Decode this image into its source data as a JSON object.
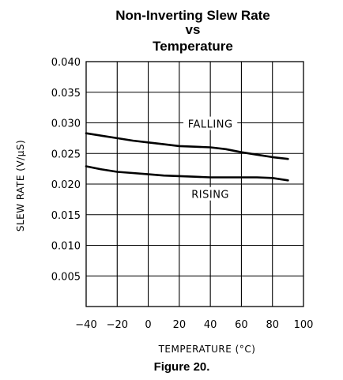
{
  "figure": {
    "title_lines": [
      "Non-Inverting Slew Rate",
      "vs",
      "Temperature"
    ],
    "caption": "Figure 20."
  },
  "chart_data": {
    "type": "line",
    "title": "Non-Inverting Slew Rate vs Temperature",
    "xlabel": "TEMPERATURE (°C)",
    "ylabel": "SLEW RATE (V/µS)",
    "xlim": [
      -40,
      100
    ],
    "ylim": [
      0,
      0.04
    ],
    "x_ticks": [
      -40,
      -20,
      0,
      20,
      40,
      60,
      80,
      100
    ],
    "x_tick_labels": [
      "−40",
      "−20",
      "0",
      "20",
      "40",
      "60",
      "80",
      "100"
    ],
    "y_ticks": [
      0.005,
      0.01,
      0.015,
      0.02,
      0.025,
      0.03,
      0.035,
      0.04
    ],
    "y_tick_labels": [
      "0.005",
      "0.010",
      "0.015",
      "0.020",
      "0.025",
      "0.030",
      "0.035",
      "0.040"
    ],
    "grid": true,
    "series": [
      {
        "name": "FALLING",
        "x": [
          -40,
          -30,
          -20,
          -10,
          0,
          10,
          20,
          30,
          40,
          50,
          60,
          70,
          80,
          90
        ],
        "y": [
          0.0283,
          0.0279,
          0.0275,
          0.0271,
          0.0268,
          0.0265,
          0.0262,
          0.0261,
          0.026,
          0.0257,
          0.0252,
          0.0248,
          0.0244,
          0.0241
        ]
      },
      {
        "name": "RISING",
        "x": [
          -40,
          -30,
          -20,
          -10,
          0,
          10,
          20,
          30,
          40,
          50,
          60,
          70,
          80,
          90
        ],
        "y": [
          0.0229,
          0.0224,
          0.022,
          0.0218,
          0.0216,
          0.0214,
          0.0213,
          0.0212,
          0.0211,
          0.0211,
          0.0211,
          0.0211,
          0.021,
          0.0206
        ]
      }
    ],
    "annotations": [
      {
        "text": "FALLING",
        "x": 40,
        "y": 0.0296
      },
      {
        "text": "RISING",
        "x": 40,
        "y": 0.0181
      }
    ],
    "line_color": "#000000",
    "grid_color": "#000000"
  }
}
